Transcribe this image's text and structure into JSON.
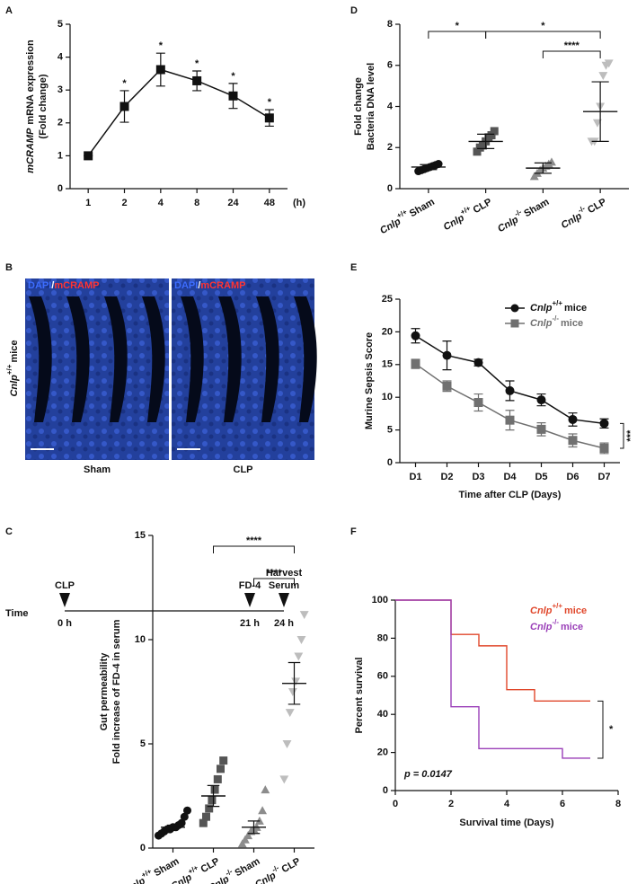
{
  "chart_data": [
    {
      "panel": "A",
      "type": "line",
      "ylabel_gene": "mCRAMP",
      "ylabel": [
        "mRNA expression",
        "(Fold change)"
      ],
      "categories": [
        "1",
        "2",
        "4",
        "8",
        "24",
        "48"
      ],
      "x_unit": "(h)",
      "values": [
        1,
        2.5,
        3.62,
        3.28,
        2.82,
        2.15
      ],
      "errors": [
        0,
        0.48,
        0.5,
        0.3,
        0.38,
        0.25
      ],
      "significance": [
        null,
        "*",
        "*",
        "*",
        "*",
        "*"
      ],
      "color": "#111111",
      "marker": "square",
      "ylim": [
        0,
        5
      ],
      "yticks": [
        0,
        1,
        2,
        3,
        4,
        5
      ]
    },
    {
      "type": "dot",
      "ylabel": [
        "Gut permeability",
        "Fold increase of FD-4 in serum"
      ],
      "categories": [
        {
          "gene": "Cnlp",
          "genotype": "+/+",
          "group": "Sham"
        },
        {
          "gene": "Cnlp",
          "genotype": "+/+",
          "group": "CLP"
        },
        {
          "gene": "Cnlp",
          "genotype": "-/-",
          "group": "Sham"
        },
        {
          "gene": "Cnlp",
          "genotype": "-/-",
          "group": "CLP"
        }
      ],
      "values": [
        1.0,
        2.5,
        1.0,
        7.9
      ],
      "errors": [
        0.1,
        0.5,
        0.3,
        1.0
      ],
      "points": [
        [
          0.6,
          0.7,
          0.8,
          0.9,
          0.9,
          1.0,
          1.0,
          1.1,
          1.2,
          1.5,
          1.8
        ],
        [
          1.2,
          1.5,
          1.9,
          2.3,
          2.8,
          3.3,
          3.8,
          4.2
        ],
        [
          0.2,
          0.4,
          0.6,
          0.8,
          0.9,
          1.0,
          1.3,
          1.8,
          2.8
        ],
        [
          3.3,
          5.0,
          6.5,
          7.5,
          8.0,
          9.2,
          10.0,
          11.2
        ]
      ],
      "markers": [
        "circle",
        "square",
        "triangle",
        "triangle-down"
      ],
      "colors": [
        "#111111",
        "#555555",
        "#8c8c8c",
        "#bdbdbd"
      ],
      "brackets": [
        {
          "from": 1,
          "to": 3,
          "label": "****"
        },
        {
          "from": 2,
          "to": 3,
          "label": "****"
        }
      ],
      "ylim": [
        0,
        15
      ],
      "yticks": [
        0,
        5,
        10,
        15
      ]
    },
    {
      "panel": "D",
      "type": "dot",
      "ylabel": [
        "Fold change",
        "Bacteria DNA level"
      ],
      "categories": [
        {
          "gene": "Cnlp",
          "genotype": "+/+",
          "group": "Sham"
        },
        {
          "gene": "Cnlp",
          "genotype": "+/+",
          "group": "CLP"
        },
        {
          "gene": "Cnlp",
          "genotype": "-/-",
          "group": "Sham"
        },
        {
          "gene": "Cnlp",
          "genotype": "-/-",
          "group": "CLP"
        }
      ],
      "values": [
        1.05,
        2.3,
        1.0,
        3.75
      ],
      "errors": [
        0.12,
        0.35,
        0.25,
        1.45
      ],
      "points": [
        [
          0.85,
          0.9,
          0.95,
          1.0,
          1.05,
          1.1,
          1.15,
          1.2
        ],
        [
          1.8,
          2.0,
          2.1,
          2.3,
          2.5,
          2.6,
          2.8
        ],
        [
          0.6,
          0.75,
          0.9,
          1.0,
          1.1,
          1.2,
          1.3
        ],
        [
          2.3,
          2.3,
          3.2,
          4.0,
          5.5,
          6.0,
          6.1
        ]
      ],
      "markers": [
        "circle",
        "square",
        "triangle",
        "triangle-down"
      ],
      "colors": [
        "#111111",
        "#555555",
        "#8c8c8c",
        "#bdbdbd"
      ],
      "brackets": [
        {
          "from": 0,
          "to": 1,
          "label": "*"
        },
        {
          "from": 1,
          "to": 3,
          "label": "*"
        },
        {
          "from": 2,
          "to": 3,
          "label": "****"
        }
      ],
      "ylim": [
        0,
        8
      ],
      "yticks": [
        0,
        2,
        4,
        6,
        8
      ]
    },
    {
      "panel": "E",
      "type": "line",
      "ylabel": "Murine Sepsis Score",
      "xlabel": "Time after CLP (Days)",
      "categories": [
        "D1",
        "D2",
        "D3",
        "D4",
        "D5",
        "D6",
        "D7"
      ],
      "series": [
        {
          "name": {
            "gene": "Cnlp",
            "genotype": "+/+",
            "suffix": "mice"
          },
          "color": "#111111",
          "marker": "circle",
          "values": [
            19.4,
            16.4,
            15.3,
            11.0,
            9.6,
            6.6,
            6.0
          ],
          "errors": [
            1.1,
            2.2,
            0.5,
            1.5,
            0.9,
            1.0,
            0.7
          ]
        },
        {
          "name": {
            "gene": "Cnlp",
            "genotype": "-/-",
            "suffix": "mice"
          },
          "color": "#707070",
          "marker": "square",
          "values": [
            15.1,
            11.7,
            9.2,
            6.5,
            5.1,
            3.4,
            2.2
          ],
          "errors": [
            0.7,
            0.8,
            1.3,
            1.5,
            1.0,
            1.0,
            0.8
          ]
        }
      ],
      "significance": "***",
      "ylim": [
        0,
        25
      ],
      "yticks": [
        0,
        5,
        10,
        15,
        20,
        25
      ]
    },
    {
      "panel": "F",
      "type": "step",
      "ylabel": "Percent survival",
      "xlabel": "Survival time (Days)",
      "series": [
        {
          "name": {
            "gene": "Cnlp",
            "genotype": "+/+",
            "suffix": "mice"
          },
          "color": "#e0472b",
          "x": [
            0,
            2,
            3,
            4,
            5,
            7
          ],
          "values": [
            100,
            82,
            76,
            53,
            47,
            47
          ]
        },
        {
          "name": {
            "gene": "Cnlp",
            "genotype": "-/-",
            "suffix": "mice"
          },
          "color": "#9a3fb8",
          "x": [
            0,
            2,
            3,
            6,
            7
          ],
          "values": [
            100,
            44,
            22,
            17,
            17
          ]
        }
      ],
      "annotation": "p = 0.0147",
      "significance": "*",
      "xlim": [
        0,
        8
      ],
      "xticks": [
        0,
        2,
        4,
        6,
        8
      ],
      "ylim": [
        0,
        100
      ],
      "yticks": [
        0,
        20,
        40,
        60,
        80,
        100
      ]
    }
  ],
  "image_panel": {
    "panel": "B",
    "stain": [
      "DAPI",
      "/",
      "mCRAMP"
    ],
    "stain_colors": [
      "#3d6dff",
      "#ffffff",
      "#ff3434"
    ],
    "row_label": {
      "gene": "Cnlp",
      "genotype": "+/+",
      "suffix": "mice"
    },
    "columns": [
      "Sham",
      "CLP"
    ]
  },
  "timeline": {
    "panel": "C",
    "axis_label": "Time",
    "events": [
      {
        "label": [
          "CLP"
        ],
        "time": "0 h"
      },
      {
        "label": [
          "FD-4"
        ],
        "time": "21 h"
      },
      {
        "label": [
          "Harvest",
          "Serum"
        ],
        "time": "24 h"
      }
    ]
  }
}
